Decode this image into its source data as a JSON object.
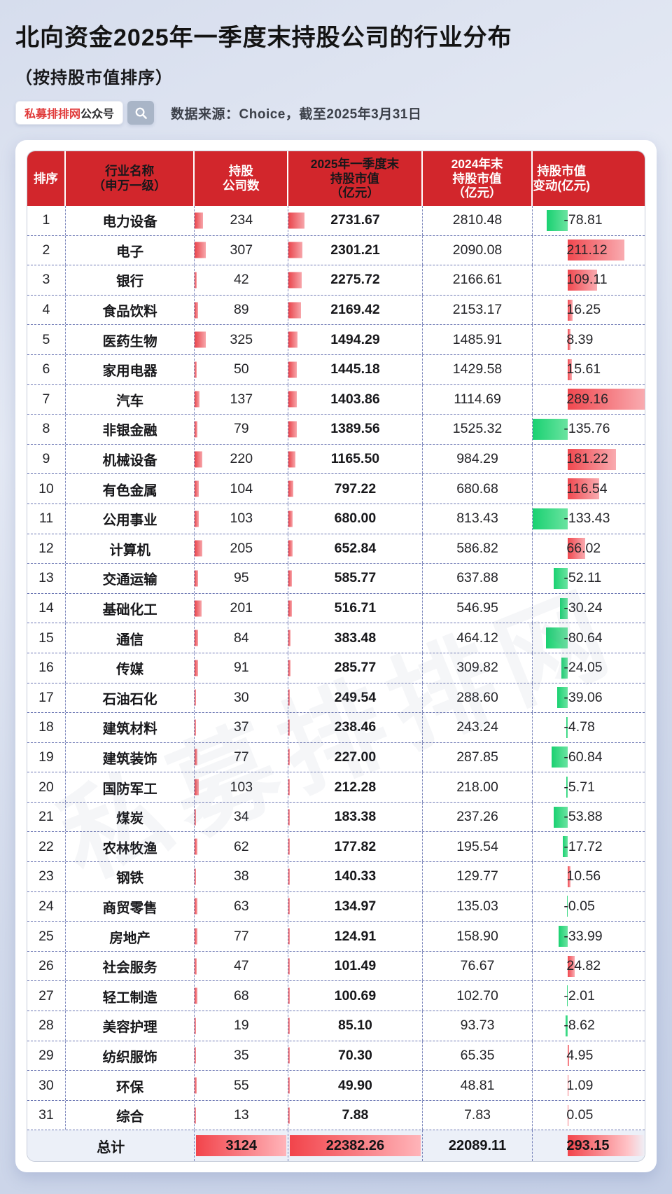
{
  "header": {
    "title": "北向资金2025年一季度末持股公司的行业分布",
    "subtitle": "（按持股市值排序）",
    "badge_brand": "私募排排网",
    "badge_suffix": "公众号",
    "search_icon": "magnifier-icon",
    "source": "数据来源：Choice，截至2025年3月31日"
  },
  "watermark": "私募排排网",
  "colors": {
    "header_red": "#d2262c",
    "positive_bar_red": "#f0484f",
    "negative_bar_green": "#19d171",
    "total_row_bg": "#ecf0f8",
    "divider_navy": "#4654a0"
  },
  "table": {
    "header_labels": [
      "排序",
      "行业名称\n（申万一级）",
      "持股\n公司数",
      "2025年一季度末\n持股市值\n（亿元）",
      "2024年末\n持股市值\n（亿元）",
      "持股市值\n变动(亿元)"
    ],
    "total_label": "总计"
  },
  "chart_data": {
    "type": "table",
    "title": "北向资金2025年一季度末持股公司的行业分布（按持股市值排序）",
    "source": "数据来源：Choice，截至2025年3月31日",
    "columns": [
      "排序",
      "行业名称（申万一级）",
      "持股公司数",
      "2025年一季度末持股市值（亿元）",
      "2024年末持股市值（亿元）",
      "持股市值变动（亿元）"
    ],
    "rows": [
      [
        1,
        "电力设备",
        234,
        2731.67,
        2810.48,
        -78.81
      ],
      [
        2,
        "电子",
        307,
        2301.21,
        2090.08,
        211.12
      ],
      [
        3,
        "银行",
        42,
        2275.72,
        2166.61,
        109.11
      ],
      [
        4,
        "食品饮料",
        89,
        2169.42,
        2153.17,
        16.25
      ],
      [
        5,
        "医药生物",
        325,
        1494.29,
        1485.91,
        8.39
      ],
      [
        6,
        "家用电器",
        50,
        1445.18,
        1429.58,
        15.61
      ],
      [
        7,
        "汽车",
        137,
        1403.86,
        1114.69,
        289.16
      ],
      [
        8,
        "非银金融",
        79,
        1389.56,
        1525.32,
        -135.76
      ],
      [
        9,
        "机械设备",
        220,
        1165.5,
        984.29,
        181.22
      ],
      [
        10,
        "有色金属",
        104,
        797.22,
        680.68,
        116.54
      ],
      [
        11,
        "公用事业",
        103,
        680.0,
        813.43,
        -133.43
      ],
      [
        12,
        "计算机",
        205,
        652.84,
        586.82,
        66.02
      ],
      [
        13,
        "交通运输",
        95,
        585.77,
        637.88,
        -52.11
      ],
      [
        14,
        "基础化工",
        201,
        516.71,
        546.95,
        -30.24
      ],
      [
        15,
        "通信",
        84,
        383.48,
        464.12,
        -80.64
      ],
      [
        16,
        "传媒",
        91,
        285.77,
        309.82,
        -24.05
      ],
      [
        17,
        "石油石化",
        30,
        249.54,
        288.6,
        -39.06
      ],
      [
        18,
        "建筑材料",
        37,
        238.46,
        243.24,
        -4.78
      ],
      [
        19,
        "建筑装饰",
        77,
        227.0,
        287.85,
        -60.84
      ],
      [
        20,
        "国防军工",
        103,
        212.28,
        218.0,
        -5.71
      ],
      [
        21,
        "煤炭",
        34,
        183.38,
        237.26,
        -53.88
      ],
      [
        22,
        "农林牧渔",
        62,
        177.82,
        195.54,
        -17.72
      ],
      [
        23,
        "钢铁",
        38,
        140.33,
        129.77,
        10.56
      ],
      [
        24,
        "商贸零售",
        63,
        134.97,
        135.03,
        -0.05
      ],
      [
        25,
        "房地产",
        77,
        124.91,
        158.9,
        -33.99
      ],
      [
        26,
        "社会服务",
        47,
        101.49,
        76.67,
        24.82
      ],
      [
        27,
        "轻工制造",
        68,
        100.69,
        102.7,
        -2.01
      ],
      [
        28,
        "美容护理",
        19,
        85.1,
        93.73,
        -8.62
      ],
      [
        29,
        "纺织服饰",
        35,
        70.3,
        65.35,
        4.95
      ],
      [
        30,
        "环保",
        55,
        49.9,
        48.81,
        1.09
      ],
      [
        31,
        "综合",
        13,
        7.88,
        7.83,
        0.05
      ]
    ],
    "total": {
      "label": "总计",
      "companies": 3124,
      "mv2025": 22382.26,
      "mv2024": 22089.11,
      "change": 293.15
    }
  }
}
